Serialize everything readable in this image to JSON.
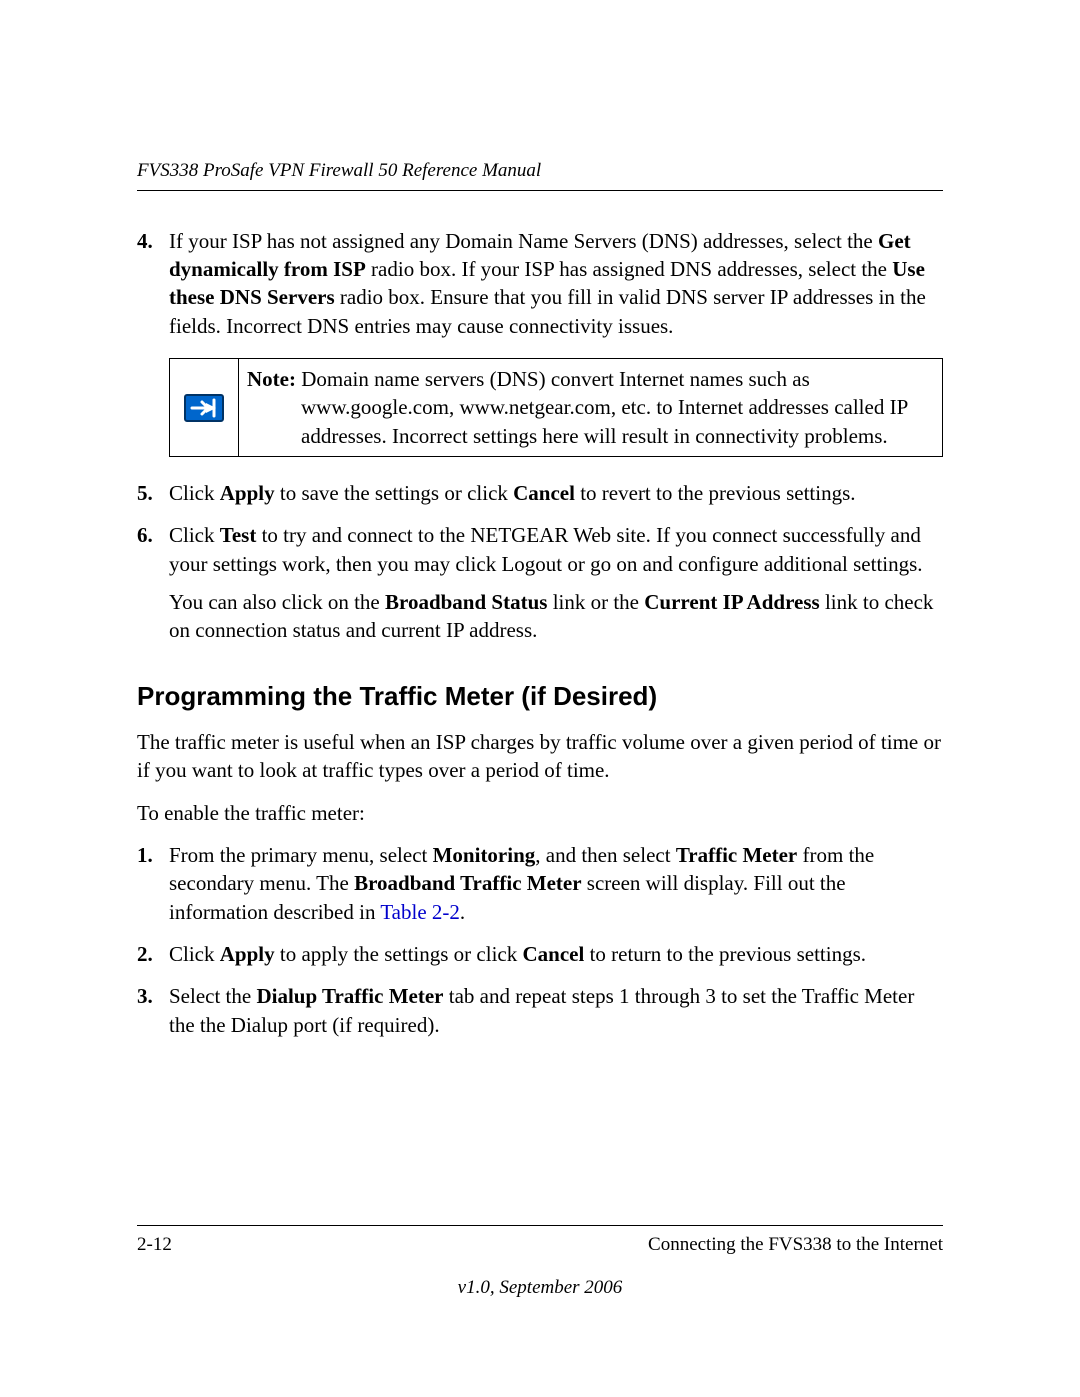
{
  "header": {
    "running_title": "FVS338 ProSafe VPN Firewall 50 Reference Manual"
  },
  "body": {
    "list_top": [
      {
        "num": "4.",
        "segments": [
          {
            "t": "If your ISP has not assigned any Domain Name Servers (DNS) addresses, select the ",
            "b": false
          },
          {
            "t": "Get dynamically from ISP",
            "b": true
          },
          {
            "t": " radio box. If your ISP has assigned DNS addresses, select the ",
            "b": false
          },
          {
            "t": "Use these DNS Servers",
            "b": true
          },
          {
            "t": " radio box. Ensure that you fill in valid DNS server IP addresses in the fields. Incorrect DNS entries may cause connectivity issues.",
            "b": false
          }
        ]
      }
    ],
    "note": {
      "label": "Note:",
      "text": " Domain name servers (DNS) convert Internet names such as www.google.com, www.netgear.com, etc. to Internet addresses called IP addresses. Incorrect settings here will result in connectivity problems.",
      "icon_colors": {
        "fill": "#0066cc",
        "stroke": "#003366",
        "arrow": "#ffffff"
      }
    },
    "list_after_note": [
      {
        "num": "5.",
        "segments": [
          {
            "t": "Click ",
            "b": false
          },
          {
            "t": "Apply",
            "b": true
          },
          {
            "t": " to save the settings or click ",
            "b": false
          },
          {
            "t": "Cancel",
            "b": true
          },
          {
            "t": " to revert to the previous settings.",
            "b": false
          }
        ],
        "continuation": null
      },
      {
        "num": "6.",
        "segments": [
          {
            "t": "Click ",
            "b": false
          },
          {
            "t": "Test",
            "b": true
          },
          {
            "t": " to try and connect to the NETGEAR Web site. If you connect successfully and your settings work, then you may click Logout or go on and configure additional settings.",
            "b": false
          }
        ],
        "continuation": [
          {
            "t": "You can also click on the ",
            "b": false
          },
          {
            "t": "Broadband Status",
            "b": true
          },
          {
            "t": " link or the ",
            "b": false
          },
          {
            "t": "Current IP Address",
            "b": true
          },
          {
            "t": " link to check on connection status and current IP address.",
            "b": false
          }
        ]
      }
    ],
    "section": {
      "heading": "Programming the Traffic Meter (if Desired)",
      "intro": "The traffic meter is useful when an ISP charges by traffic volume over a given period of time or if you want to look at traffic types over a period of time.",
      "lead_in": "To enable the traffic meter:",
      "steps": [
        {
          "num": "1.",
          "segments": [
            {
              "t": "From the primary menu, select ",
              "b": false
            },
            {
              "t": "Monitoring",
              "b": true
            },
            {
              "t": ", and then select ",
              "b": false
            },
            {
              "t": "Traffic Meter",
              "b": true
            },
            {
              "t": " from the secondary menu. The ",
              "b": false
            },
            {
              "t": "Broadband Traffic Meter",
              "b": true
            },
            {
              "t": " screen will display. Fill out the information described in ",
              "b": false
            },
            {
              "t": "Table 2-2",
              "xref": true
            },
            {
              "t": ".",
              "b": false
            }
          ]
        },
        {
          "num": "2.",
          "segments": [
            {
              "t": "Click ",
              "b": false
            },
            {
              "t": "Apply",
              "b": true
            },
            {
              "t": " to apply the settings or click ",
              "b": false
            },
            {
              "t": "Cancel",
              "b": true
            },
            {
              "t": " to return to the previous settings.",
              "b": false
            }
          ]
        },
        {
          "num": "3.",
          "segments": [
            {
              "t": "Select the ",
              "b": false
            },
            {
              "t": "Dialup Traffic Meter",
              "b": true
            },
            {
              "t": " tab and repeat steps 1 through 3 to set the Traffic Meter the the Dialup port (if required).",
              "b": false
            }
          ]
        }
      ]
    }
  },
  "footer": {
    "page_num": "2-12",
    "chapter": "Connecting the FVS338 to the Internet",
    "version": "v1.0, September 2006"
  }
}
